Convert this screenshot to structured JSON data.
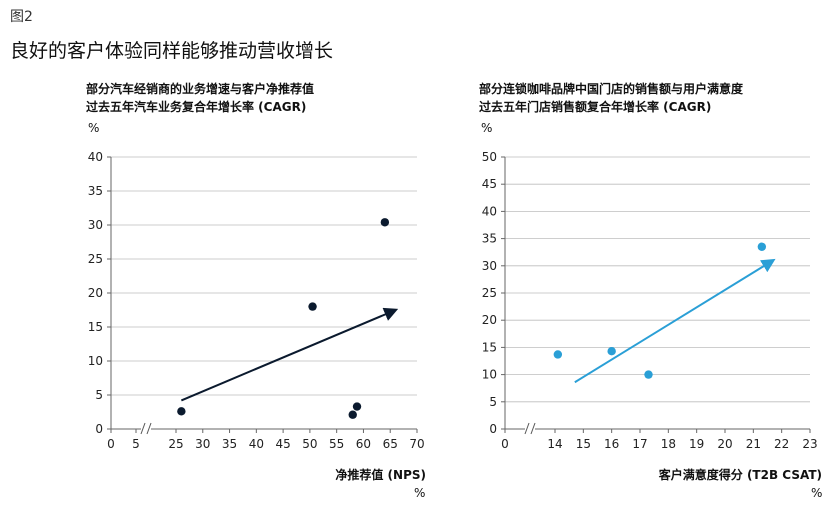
{
  "figure_label": "图2",
  "main_title": "良好的客户体验同样能够推动营收增长",
  "chart_data": [
    {
      "type": "scatter",
      "title_lines": [
        "部分汽车经销商的业务增速与客户净推荐值",
        "过去五年汽车业务复合年增长率 (CAGR)"
      ],
      "y_unit": "%",
      "xlabel": "净推荐值 (NPS)",
      "x_unit": "%",
      "xlim": [
        0,
        70
      ],
      "x_ticks": [
        0,
        5,
        25,
        30,
        35,
        40,
        45,
        50,
        55,
        60,
        65,
        70
      ],
      "x_break": true,
      "ylim": [
        0,
        40
      ],
      "y_ticks": [
        0,
        5,
        10,
        15,
        20,
        25,
        30,
        35,
        40
      ],
      "grid": true,
      "point_color": "#0b1a2e",
      "trend_color": "#0b1a2e",
      "points": [
        {
          "x": 26,
          "y": 2.6
        },
        {
          "x": 50.5,
          "y": 18
        },
        {
          "x": 58,
          "y": 2.1
        },
        {
          "x": 58.8,
          "y": 3.3
        },
        {
          "x": 64,
          "y": 30.4
        }
      ],
      "trend": {
        "x1": 26,
        "y1": 4.2,
        "x2": 66,
        "y2": 17.5
      }
    },
    {
      "type": "scatter",
      "title_lines": [
        "部分连锁咖啡品牌中国门店的销售额与用户满意度",
        "过去五年门店销售额复合年增长率 (CAGR)"
      ],
      "y_unit": "%",
      "xlabel": "客户满意度得分 (T2B CSAT)",
      "x_unit": "%",
      "xlim": [
        0,
        23
      ],
      "x_ticks": [
        0,
        14,
        15,
        16,
        17,
        18,
        19,
        20,
        21,
        22,
        23
      ],
      "x_break": true,
      "ylim": [
        0,
        50
      ],
      "y_ticks": [
        0,
        5,
        10,
        15,
        20,
        25,
        30,
        35,
        40,
        45,
        50
      ],
      "grid": true,
      "point_color": "#2a9fd6",
      "trend_color": "#2a9fd6",
      "points": [
        {
          "x": 14.1,
          "y": 13.7
        },
        {
          "x": 16,
          "y": 14.3
        },
        {
          "x": 17.3,
          "y": 10
        },
        {
          "x": 21.3,
          "y": 33.5
        }
      ],
      "trend": {
        "x1": 14.7,
        "y1": 8.6,
        "x2": 21.7,
        "y2": 31
      }
    }
  ]
}
